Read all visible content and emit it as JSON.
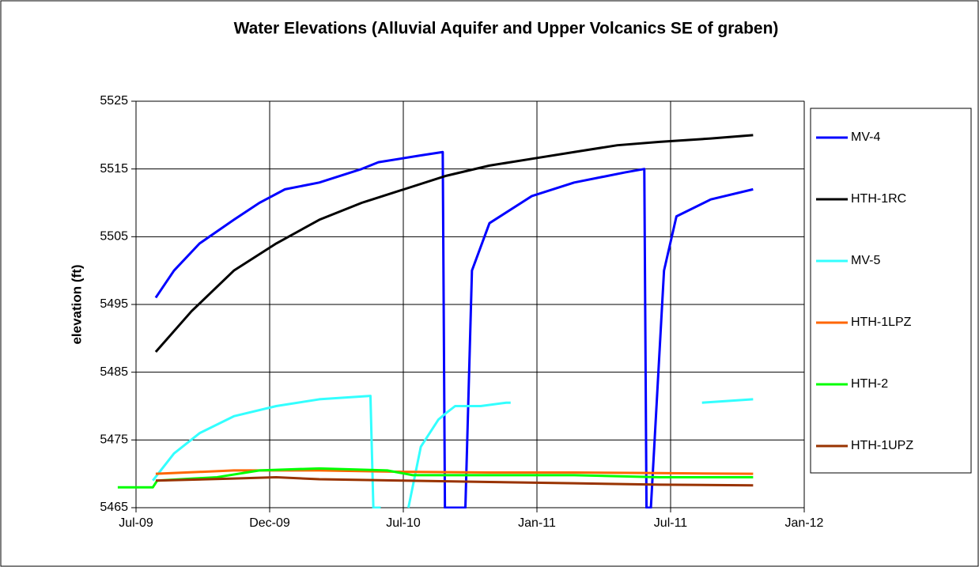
{
  "chart_data": {
    "type": "line",
    "title": "Water Elevations (Alluvial Aquifer and Upper Volcanics SE of graben)",
    "y_label": "elevation (ft)",
    "xlim": [
      40000,
      40915
    ],
    "xticks": [
      {
        "value": 40000,
        "label": "Jul-09"
      },
      {
        "value": 40183,
        "label": "Dec-09"
      },
      {
        "value": 40366,
        "label": "Jul-10"
      },
      {
        "value": 40549,
        "label": "Jan-11"
      },
      {
        "value": 40732,
        "label": "Jul-11"
      },
      {
        "value": 40915,
        "label": "Jan-12"
      }
    ],
    "ylim": [
      5465,
      5525
    ],
    "yticks": [
      5465,
      5475,
      5485,
      5495,
      5505,
      5515,
      5525
    ],
    "grid": true,
    "legend": "right",
    "series": [
      {
        "name": "MV-4",
        "color": "#0000ff",
        "x": [
          40027,
          40052,
          40087,
          40134,
          40169,
          40204,
          40251,
          40309,
          40332,
          40390,
          40420,
          40423,
          40451,
          40460,
          40484,
          40542,
          40600,
          40670,
          40696,
          40699,
          40705,
          40723,
          40740,
          40787,
          40845
        ],
        "values": [
          5496,
          5500,
          5504,
          5507.5,
          5510,
          5512,
          5513,
          5515,
          5516,
          5517,
          5517.5,
          5465,
          5465,
          5500,
          5507,
          5511,
          5513,
          5514.5,
          5515,
          5465,
          5465,
          5500,
          5508,
          5510.5,
          5512
        ]
      },
      {
        "name": "HTH-1RC",
        "color": "#000000",
        "x": [
          40027,
          40076,
          40134,
          40192,
          40251,
          40309,
          40367,
          40425,
          40484,
          40542,
          40600,
          40659,
          40717,
          40787,
          40845
        ],
        "values": [
          5488,
          5494,
          5500,
          5504,
          5507.5,
          5510,
          5512,
          5514,
          5515.5,
          5516.5,
          5517.5,
          5518.5,
          5519,
          5519.5,
          5520
        ]
      },
      {
        "name": "MV-5",
        "color": "#33ffff",
        "x": [
          40023,
          40052,
          40087,
          40134,
          40192,
          40251,
          40321,
          40325,
          40335,
          null,
          40373,
          40390,
          40402,
          40414,
          40425,
          40437,
          40472,
          40507,
          40513,
          null,
          40775,
          40845
        ],
        "values": [
          5469,
          5473,
          5476,
          5478.5,
          5480,
          5481,
          5481.5,
          5465,
          5465,
          null,
          5465,
          5474,
          5476,
          5478,
          5479,
          5480,
          5480,
          5480.5,
          5480.5,
          null,
          5480.5,
          5481
        ]
      },
      {
        "name": "HTH-1LPZ",
        "color": "#ff6600",
        "x": [
          40027,
          40134,
          40251,
          40367,
          40484,
          40600,
          40717,
          40845
        ],
        "values": [
          5470,
          5470.5,
          5470.5,
          5470.3,
          5470.2,
          5470.2,
          5470.1,
          5470
        ]
      },
      {
        "name": "HTH-2",
        "color": "#00ff00",
        "x": [
          39975,
          40023,
          40029,
          40111,
          40169,
          40251,
          40344,
          40379,
          40484,
          40600,
          40717,
          40845
        ],
        "values": [
          5468,
          5468,
          5469,
          5469.5,
          5470.5,
          5470.8,
          5470.5,
          5469.8,
          5469.8,
          5469.8,
          5469.5,
          5469.5
        ]
      },
      {
        "name": "HTH-1UPZ",
        "color": "#993300",
        "x": [
          40027,
          40134,
          40192,
          40251,
          40367,
          40484,
          40600,
          40717,
          40845
        ],
        "values": [
          5469,
          5469.3,
          5469.5,
          5469.2,
          5469,
          5468.8,
          5468.6,
          5468.4,
          5468.3
        ]
      }
    ]
  }
}
